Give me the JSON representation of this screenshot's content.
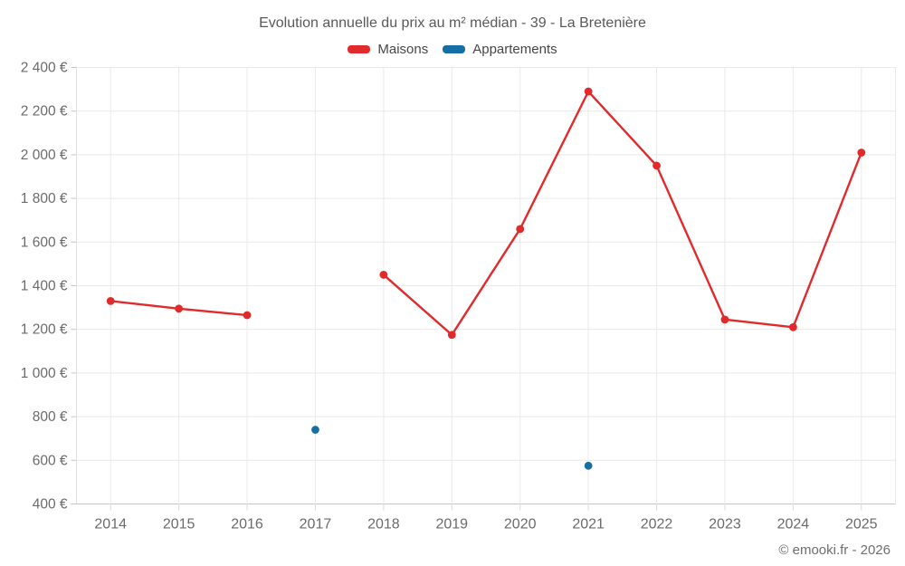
{
  "header": {
    "title": "Evolution annuelle du prix au m² médian - 39 - La Bretenière"
  },
  "legend": {
    "items": [
      {
        "id": "maisons",
        "label": "Maisons",
        "color": "#e02a2b"
      },
      {
        "id": "appartements",
        "label": "Appartements",
        "color": "#156fa5"
      }
    ]
  },
  "footer": {
    "credit": "© emooki.fr - 2026"
  },
  "chart_data": {
    "type": "line",
    "title": "Evolution annuelle du prix au m² médian - 39 - La Bretenière",
    "categories": [
      2014,
      2015,
      2016,
      2017,
      2018,
      2019,
      2020,
      2021,
      2022,
      2023,
      2024,
      2025
    ],
    "series": [
      {
        "name": "Maisons",
        "color": "#e02a2b",
        "values": [
          1330,
          1295,
          1265,
          null,
          1450,
          1175,
          1660,
          2290,
          1950,
          1245,
          1210,
          2010
        ]
      },
      {
        "name": "Appartements",
        "color": "#156fa5",
        "values": [
          null,
          null,
          null,
          740,
          null,
          null,
          null,
          575,
          null,
          null,
          null,
          null
        ]
      }
    ],
    "xlabel": "",
    "ylabel": "",
    "ylim": [
      400,
      2400
    ],
    "ytick_step": 200,
    "ytick_labels": [
      "400 €",
      "600 €",
      "800 €",
      "1 000 €",
      "1 200 €",
      "1 400 €",
      "1 600 €",
      "1 800 €",
      "2 000 €",
      "2 200 €",
      "2 400 €"
    ],
    "grid": true,
    "legend_position": "top",
    "colors": {
      "grid_line": "#e9e9e9",
      "axis_line": "#c4c4c4",
      "tick_label": "#6b6b6b"
    }
  }
}
